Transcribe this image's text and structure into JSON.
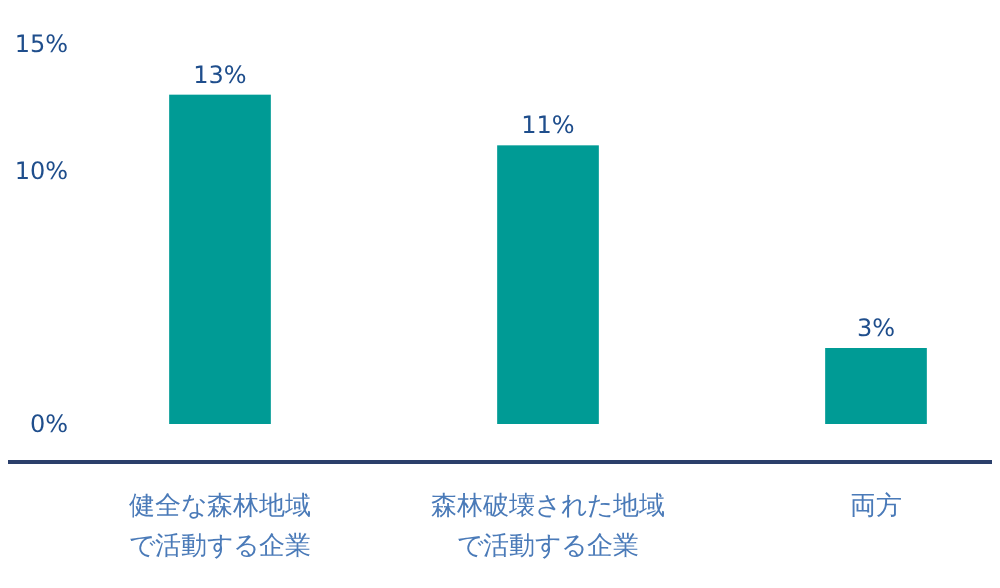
{
  "chart_data": {
    "type": "bar",
    "categories": [
      "健全な森林地域で活動する企業",
      "森林破壊された地域で活動する企業",
      "両方"
    ],
    "values": [
      13,
      11,
      3
    ],
    "color": "#009b95",
    "ylim": [
      0,
      15
    ],
    "yticks": [
      {
        "value": 0,
        "label": "0%"
      },
      {
        "value": 10,
        "label": "10%"
      },
      {
        "value": 15,
        "label": "15%"
      }
    ],
    "value_labels": [
      "13%",
      "11%",
      "3%"
    ],
    "grid": false
  }
}
